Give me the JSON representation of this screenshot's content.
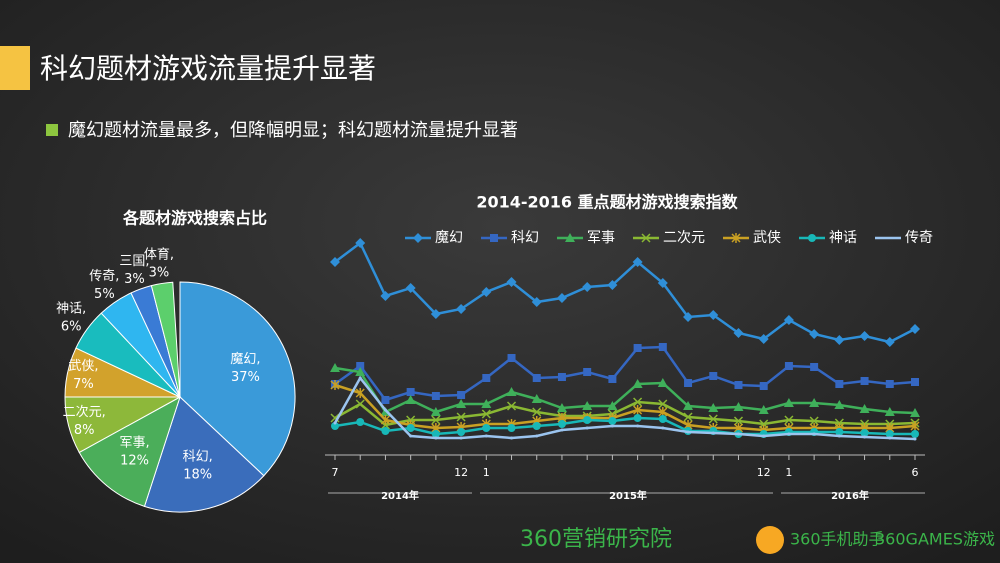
{
  "slide": {
    "title": "科幻题材游戏流量提升显著",
    "bullet": "魔幻题材流量最多，但降幅明显；科幻题材流量提升显著",
    "footer": [
      "360营销研究院",
      "360手机助手",
      "360GAMES游戏"
    ]
  },
  "chart_data": [
    {
      "type": "pie",
      "title": "各题材游戏搜索占比",
      "categories": [
        "魔幻,",
        "科幻,",
        "军事,",
        "二次元,",
        "武侠,",
        "神话,",
        "传奇,",
        "三国,",
        "体育,"
      ],
      "values": [
        37,
        18,
        12,
        8,
        7,
        6,
        5,
        3,
        3
      ],
      "value_labels": [
        "37%",
        "18%",
        "12%",
        "8%",
        "7%",
        "6%",
        "5%",
        "3%",
        "3%"
      ],
      "colors": [
        "#3a9ad9",
        "#3a6dbb",
        "#4bae5a",
        "#8db83a",
        "#d2a22c",
        "#19bcbe",
        "#2fb6f0",
        "#3a7bd5",
        "#5ccf6c"
      ]
    },
    {
      "type": "line",
      "title": "2014-2016 重点题材游戏搜索指数",
      "categories": [
        "7",
        null,
        null,
        null,
        null,
        "12",
        "1",
        null,
        null,
        null,
        null,
        null,
        null,
        null,
        null,
        null,
        null,
        "12",
        "1",
        null,
        null,
        null,
        null,
        "6"
      ],
      "annotations": [
        "2014年",
        "2015年",
        "2016年"
      ],
      "ylim": [
        0,
        110
      ],
      "series": [
        {
          "name": "魔幻",
          "color": "#2f8fd8",
          "marker": "diamond",
          "values": [
            94,
            103.5,
            77,
            81,
            68,
            70.5,
            79,
            84,
            74,
            76,
            81.5,
            82.5,
            94,
            83.5,
            66.5,
            67.5,
            58.5,
            55.5,
            65,
            58,
            55,
            57,
            54,
            60.5
          ]
        },
        {
          "name": "科幻",
          "color": "#3567c2",
          "marker": "square",
          "values": [
            33,
            42,
            25,
            29,
            27,
            27.5,
            36,
            46,
            36,
            36.5,
            39,
            35.5,
            51,
            51.5,
            33.5,
            37,
            32.5,
            32,
            42,
            41.5,
            33,
            34.5,
            33,
            34
          ]
        },
        {
          "name": "军事",
          "color": "#3fb05a",
          "marker": "triangle",
          "values": [
            41,
            39,
            19,
            25,
            19,
            23,
            23,
            29,
            25.5,
            21,
            22,
            22,
            33,
            33.5,
            22,
            21,
            21.5,
            20,
            23.5,
            23.5,
            22.5,
            20.5,
            19,
            18.5
          ]
        },
        {
          "name": "二次元",
          "color": "#8ab833",
          "marker": "x",
          "values": [
            16,
            23,
            12.5,
            15,
            15,
            16.5,
            18,
            22,
            19,
            17,
            17,
            18,
            24,
            23,
            16.5,
            15.5,
            14.5,
            13,
            15,
            14.5,
            13.5,
            13,
            13,
            13.5
          ]
        },
        {
          "name": "武侠",
          "color": "#c9a023",
          "marker": "star",
          "values": [
            32.5,
            28.5,
            15,
            12.5,
            11,
            11.5,
            13,
            13,
            14.5,
            16,
            16,
            16,
            20,
            19,
            12.5,
            11,
            11,
            10,
            11,
            11,
            11,
            11,
            11,
            12
          ]
        },
        {
          "name": "神话",
          "color": "#18b8b8",
          "marker": "circle",
          "values": [
            12,
            14,
            9.5,
            11,
            8,
            9,
            11,
            11,
            12,
            13,
            15,
            14.5,
            16,
            15.5,
            9.5,
            9.5,
            8,
            8,
            9,
            9,
            9,
            8.5,
            8,
            8
          ]
        },
        {
          "name": "传奇",
          "color": "#9bc4ef",
          "marker": "none",
          "values": [
            13.5,
            36,
            20,
            7,
            6,
            6,
            7,
            6,
            7,
            10,
            11,
            12,
            12,
            11,
            9,
            8.5,
            8,
            7,
            8,
            8,
            7,
            6.5,
            6,
            5.5
          ]
        }
      ]
    }
  ]
}
